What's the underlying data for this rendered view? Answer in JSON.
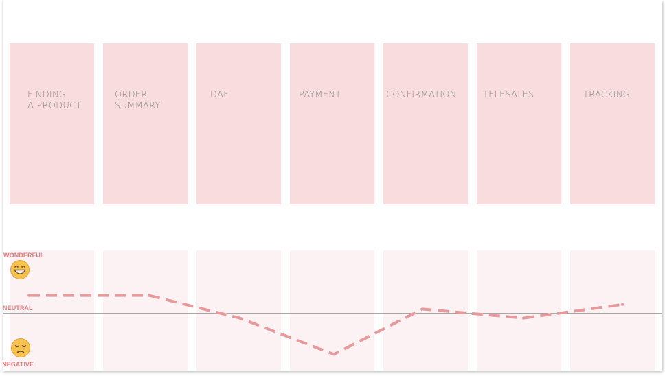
{
  "stages": [
    {
      "label": "FINDING\nA PRODUCT"
    },
    {
      "label": "ORDER\nSUMMARY"
    },
    {
      "label": "DAF"
    },
    {
      "label": "PAYMENT"
    },
    {
      "label": "CONFIRMATION"
    },
    {
      "label": "TELESALES"
    },
    {
      "label": "TRACKING"
    }
  ],
  "emotion_scale": {
    "top": "WONDERFUL",
    "middle": "NEUTRAL",
    "bottom": "NEGATIVE",
    "top_icon": "grinning-face-icon",
    "bottom_icon": "sad-face-icon"
  },
  "chart_data": {
    "type": "line",
    "style": "dashed",
    "series": [
      {
        "values": [
          0.4,
          0.4,
          -0.1,
          -0.9,
          0.1,
          -0.1,
          0.2
        ]
      }
    ],
    "ylim": [
      -1,
      1
    ]
  },
  "colors": {
    "stage_fill": "#f9dcde",
    "lane_fill": "#fdf2f3",
    "line": "#e8999b",
    "label": "#e8797b",
    "neutral_line": "#555555"
  }
}
